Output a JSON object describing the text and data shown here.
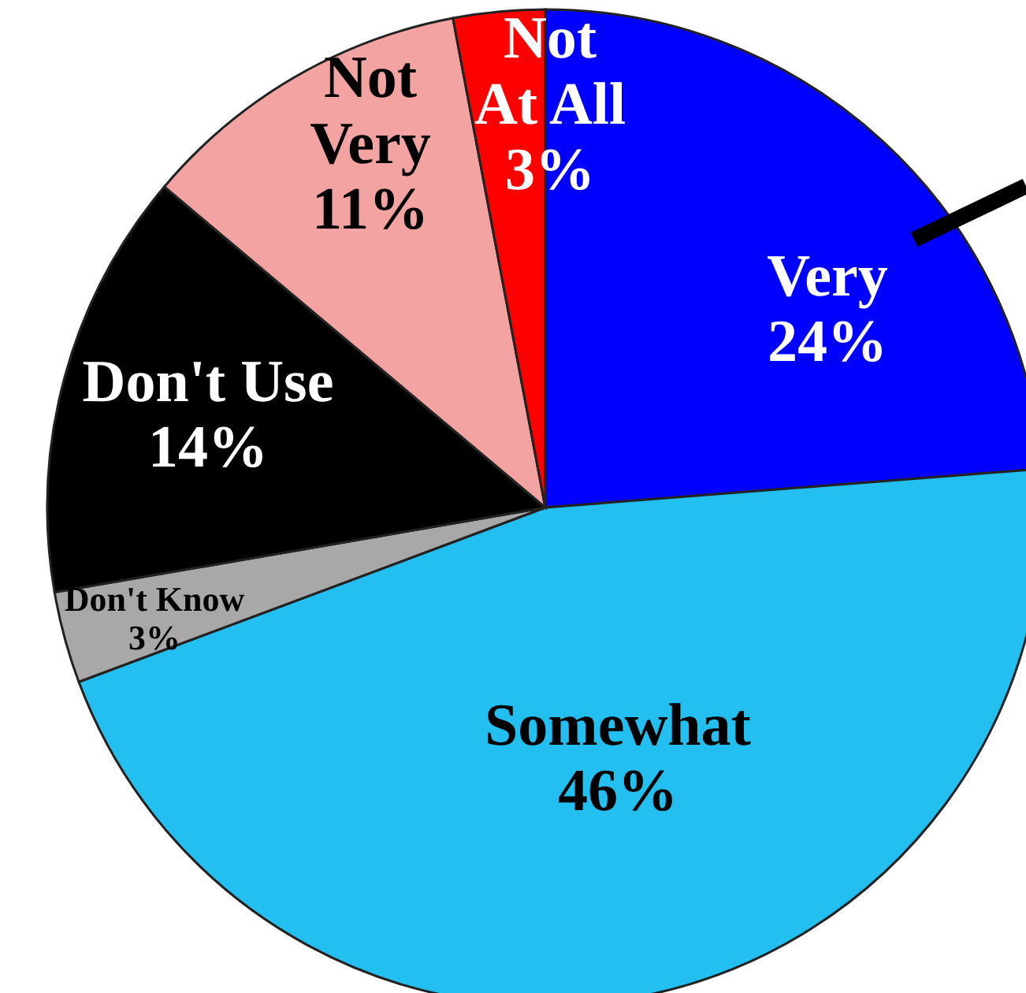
{
  "chart_data": {
    "type": "pie",
    "categories": [
      "Very",
      "Somewhat",
      "Don't Know",
      "Don't Use",
      "Not Very",
      "Not At All"
    ],
    "values": [
      24,
      46,
      3,
      14,
      11,
      3
    ],
    "colors": [
      "#0000ff",
      "#22bff0",
      "#a8a8a8",
      "#000000",
      "#f4a3a3",
      "#ff0000"
    ],
    "value_labels": [
      "24%",
      "46%",
      "3%",
      "14%",
      "11%",
      "3%"
    ]
  }
}
